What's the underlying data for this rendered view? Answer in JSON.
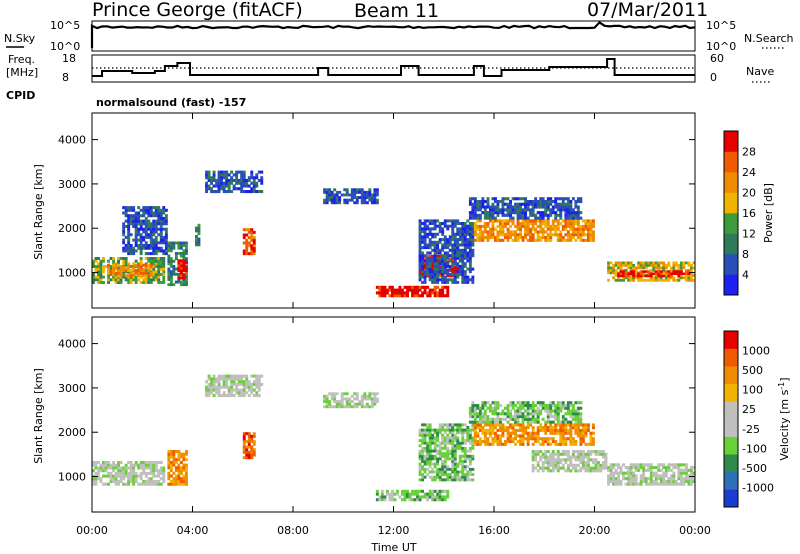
{
  "header": {
    "station": "Prince George (fitACF)",
    "beam": "Beam 11",
    "date": "07/Mar/2011"
  },
  "status_panels": {
    "nsky_label": "N.Sky",
    "nsky_ticks": [
      "10^5",
      "10^0"
    ],
    "nsearch_label": "N.Search",
    "nsearch_ticks": [
      "10^5",
      "10^0"
    ],
    "freq_label_1": "Freq.",
    "freq_label_2": "[MHz]",
    "freq_ticks": [
      "18",
      "8"
    ],
    "nave_label": "Nave",
    "nave_ticks": [
      "60",
      "0"
    ],
    "cpid_label": "CPID",
    "cpid_value": "normalsound (fast) -157"
  },
  "colors": {
    "power_scale": [
      "#1f1ff0",
      "#2b4fb8",
      "#2e7a5a",
      "#3d9b3c",
      "#f0b400",
      "#f08c00",
      "#f05a00",
      "#e60000"
    ],
    "velocity_scale": [
      "#1c3cd0",
      "#2e6fb8",
      "#2e8a4a",
      "#6ad03a",
      "#c0c0c0",
      "#c0c0b8",
      "#f0b400",
      "#f08c00",
      "#f05a00",
      "#e60000"
    ],
    "ground_scatter": "#bebebe"
  },
  "chart_data": [
    {
      "type": "heatmap",
      "panel": "power",
      "ylabel": "Slant Range [km]",
      "ylim": [
        200,
        4600
      ],
      "yticks": [
        1000,
        2000,
        3000,
        4000
      ],
      "xlim": [
        0,
        24
      ],
      "colorbar_label": "Power [dB]",
      "colorbar_ticks": [
        "4",
        "8",
        "12",
        "16",
        "20",
        "24",
        "28"
      ],
      "echo_regions": [
        {
          "t0": 0.0,
          "t1": 2.9,
          "r0": 750,
          "r1": 1350,
          "level": 3
        },
        {
          "t0": 0.6,
          "t1": 2.4,
          "r0": 900,
          "r1": 1200,
          "level": 5
        },
        {
          "t0": 1.2,
          "t1": 3.0,
          "r0": 1400,
          "r1": 2500,
          "level": 1
        },
        {
          "t0": 3.0,
          "t1": 3.8,
          "r0": 700,
          "r1": 1700,
          "level": 2
        },
        {
          "t0": 3.4,
          "t1": 3.8,
          "r0": 850,
          "r1": 1300,
          "level": 7
        },
        {
          "t0": 4.1,
          "t1": 4.3,
          "r0": 1600,
          "r1": 2100,
          "level": 2
        },
        {
          "t0": 6.0,
          "t1": 6.5,
          "r0": 1400,
          "r1": 2000,
          "level": 6
        },
        {
          "t0": 4.5,
          "t1": 6.8,
          "r0": 2800,
          "r1": 3300,
          "level": 1
        },
        {
          "t0": 9.2,
          "t1": 11.4,
          "r0": 2550,
          "r1": 2900,
          "level": 1
        },
        {
          "t0": 11.3,
          "t1": 14.2,
          "r0": 450,
          "r1": 700,
          "level": 7
        },
        {
          "t0": 13.0,
          "t1": 14.6,
          "r0": 900,
          "r1": 1400,
          "level": 7
        },
        {
          "t0": 13.0,
          "t1": 15.2,
          "r0": 750,
          "r1": 2200,
          "level": 1
        },
        {
          "t0": 15.2,
          "t1": 20.0,
          "r0": 1700,
          "r1": 2200,
          "level": 5
        },
        {
          "t0": 15.0,
          "t1": 19.5,
          "r0": 2200,
          "r1": 2700,
          "level": 1
        },
        {
          "t0": 20.5,
          "t1": 24.0,
          "r0": 800,
          "r1": 1250,
          "level": 4
        },
        {
          "t0": 20.9,
          "t1": 23.8,
          "r0": 900,
          "r1": 1050,
          "level": 7
        }
      ]
    },
    {
      "type": "heatmap",
      "panel": "velocity",
      "ylabel": "Slant Range [km]",
      "ylim": [
        200,
        4600
      ],
      "yticks": [
        1000,
        2000,
        3000,
        4000
      ],
      "xlim": [
        0,
        24
      ],
      "xlabel": "Time UT",
      "xtick_labels": [
        "00:00",
        "04:00",
        "08:00",
        "12:00",
        "16:00",
        "20:00",
        "00:00"
      ],
      "colorbar_label": "Velocity [m s^-1]",
      "colorbar_ticks": [
        "1000",
        "500",
        "100",
        "25",
        "-25",
        "-100",
        "-500",
        "-1000"
      ],
      "echo_regions": [
        {
          "t0": 0.0,
          "t1": 2.9,
          "r0": 800,
          "r1": 1350,
          "level": 4
        },
        {
          "t0": 3.0,
          "t1": 3.8,
          "r0": 800,
          "r1": 1600,
          "level": 7
        },
        {
          "t0": 6.0,
          "t1": 6.5,
          "r0": 1400,
          "r1": 2000,
          "level": 8
        },
        {
          "t0": 4.5,
          "t1": 6.8,
          "r0": 2800,
          "r1": 3300,
          "level": 4
        },
        {
          "t0": 9.2,
          "t1": 11.4,
          "r0": 2550,
          "r1": 2900,
          "level": 4
        },
        {
          "t0": 11.3,
          "t1": 14.2,
          "r0": 450,
          "r1": 700,
          "level": 3
        },
        {
          "t0": 13.0,
          "t1": 15.2,
          "r0": 900,
          "r1": 2200,
          "level": 3
        },
        {
          "t0": 15.2,
          "t1": 20.0,
          "r0": 1700,
          "r1": 2200,
          "level": 7
        },
        {
          "t0": 15.0,
          "t1": 19.5,
          "r0": 2200,
          "r1": 2700,
          "level": 3
        },
        {
          "t0": 17.5,
          "t1": 20.5,
          "r0": 1100,
          "r1": 1600,
          "level": 4
        },
        {
          "t0": 20.5,
          "t1": 24.0,
          "r0": 800,
          "r1": 1300,
          "level": 4
        }
      ]
    }
  ]
}
